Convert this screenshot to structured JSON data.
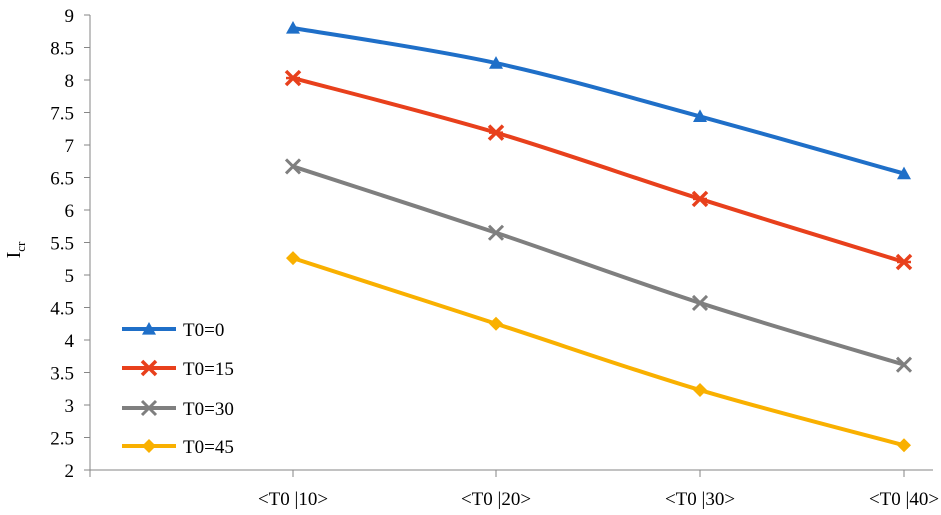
{
  "chart_data": {
    "type": "line",
    "categories": [
      "<T0 |10>",
      "<T0 |20>",
      "<T0 |30>",
      "<T0 |40>"
    ],
    "ylabel": "I",
    "ylabel_sub": "cr",
    "ylim": [
      2,
      9
    ],
    "yticks": [
      "2",
      "2.5",
      "3",
      "3.5",
      "4",
      "4.5",
      "5",
      "5.5",
      "6",
      "6.5",
      "7",
      "7.5",
      "8",
      "8.5",
      "9"
    ],
    "grid": false,
    "legend_position": "bottom-left",
    "series": [
      {
        "name": "T0=0",
        "color": "#1f6fc8",
        "marker": "triangle",
        "values": [
          8.8,
          8.26,
          7.44,
          6.56
        ]
      },
      {
        "name": "T0=15",
        "color": "#e8401c",
        "marker": "x-star",
        "values": [
          8.03,
          7.19,
          6.17,
          5.2
        ]
      },
      {
        "name": "T0=30",
        "color": "#7f7f7f",
        "marker": "x",
        "values": [
          6.67,
          5.65,
          4.57,
          3.62
        ]
      },
      {
        "name": "T0=45",
        "color": "#f9b000",
        "marker": "diamond",
        "values": [
          5.26,
          4.25,
          3.23,
          2.38
        ]
      }
    ]
  }
}
